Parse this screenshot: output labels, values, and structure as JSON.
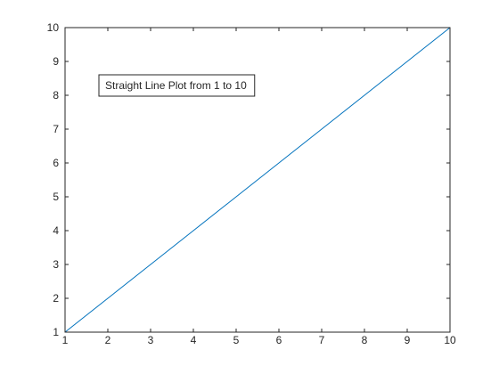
{
  "chart_data": {
    "type": "line",
    "annotation": "Straight Line Plot from 1 to 10",
    "x": [
      1,
      2,
      3,
      4,
      5,
      6,
      7,
      8,
      9,
      10
    ],
    "series": [
      {
        "color": "#0072bd",
        "values": [
          1,
          2,
          3,
          4,
          5,
          6,
          7,
          8,
          9,
          10
        ]
      }
    ],
    "xlim": [
      1,
      10
    ],
    "xticks": [
      1,
      2,
      3,
      4,
      5,
      6,
      7,
      8,
      9,
      10
    ],
    "ylim": [
      1,
      10
    ],
    "yticks": [
      1,
      2,
      3,
      4,
      5,
      6,
      7,
      8,
      9,
      10
    ],
    "grid": false
  }
}
